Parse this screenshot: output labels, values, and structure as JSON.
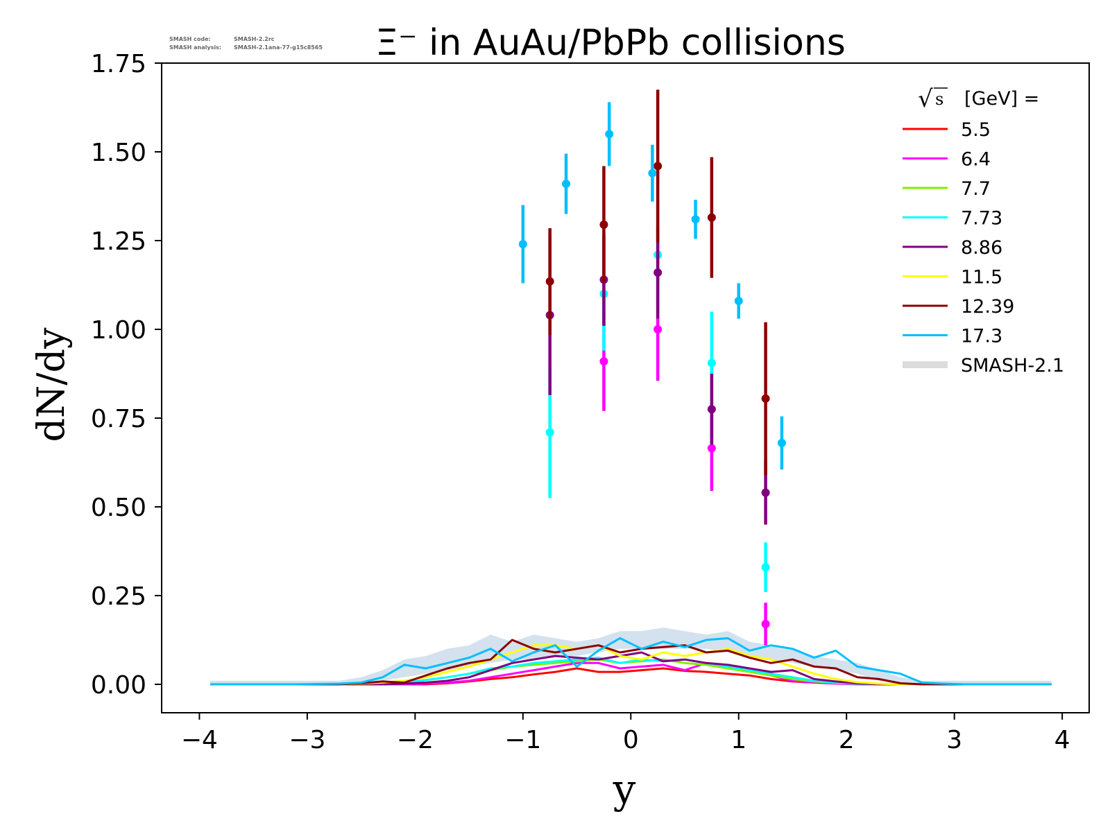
{
  "meta": {
    "code_label": "SMASH code:",
    "code_value": "SMASH-2.2rc",
    "analysis_label": "SMASH analysis:",
    "analysis_value": "SMASH-2.1ana-77-g15c8565"
  },
  "chart_data": {
    "type": "line",
    "title": "Ξ⁻ in AuAu/PbPb collisions",
    "xlabel": "y",
    "ylabel": "dN/dy",
    "xlim": [
      -4.35,
      4.25
    ],
    "ylim": [
      -0.08,
      1.75
    ],
    "xticks": [
      -4,
      -3,
      -2,
      -1,
      0,
      1,
      2,
      3,
      4
    ],
    "xtick_labels": [
      "−4",
      "−3",
      "−2",
      "−1",
      "0",
      "1",
      "2",
      "3",
      "4"
    ],
    "yticks": [
      0,
      0.25,
      0.5,
      0.75,
      1.0,
      1.25,
      1.5,
      1.75
    ],
    "ytick_labels": [
      "0.00",
      "0.25",
      "0.50",
      "0.75",
      "1.00",
      "1.25",
      "1.50",
      "1.75"
    ],
    "grid": false,
    "legend": {
      "position": "top-right",
      "title_sqrt": "√",
      "title_s": "s",
      "title_rest": "[GeV] ="
    },
    "band": {
      "name": "SMASH-2.1",
      "color": "#b0c8e0",
      "x": [
        -3.9,
        -3.5,
        -3.1,
        -2.7,
        -2.5,
        -2.3,
        -2.1,
        -1.9,
        -1.7,
        -1.5,
        -1.3,
        -1.1,
        -0.9,
        -0.7,
        -0.5,
        -0.3,
        -0.1,
        0.1,
        0.3,
        0.5,
        0.7,
        0.9,
        1.1,
        1.3,
        1.5,
        1.7,
        1.9,
        2.1,
        2.3,
        2.5,
        2.7,
        2.9,
        3.1,
        3.5,
        3.9
      ],
      "low": [
        0,
        0,
        0,
        0,
        0,
        0.01,
        0.02,
        0.03,
        0.04,
        0.05,
        0.06,
        0.07,
        0.07,
        0.08,
        0.08,
        0.09,
        0.1,
        0.1,
        0.1,
        0.1,
        0.1,
        0.09,
        0.08,
        0.07,
        0.06,
        0.05,
        0.04,
        0.03,
        0.01,
        0,
        0,
        0,
        0,
        0,
        0
      ],
      "high": [
        0.01,
        0.01,
        0.01,
        0.01,
        0.02,
        0.04,
        0.07,
        0.08,
        0.1,
        0.11,
        0.14,
        0.12,
        0.14,
        0.13,
        0.12,
        0.13,
        0.15,
        0.15,
        0.16,
        0.15,
        0.14,
        0.15,
        0.12,
        0.11,
        0.1,
        0.08,
        0.07,
        0.06,
        0.04,
        0.02,
        0.01,
        0.01,
        0.01,
        0.01,
        0.01
      ]
    },
    "x": [
      -3.9,
      -3.5,
      -3.1,
      -2.7,
      -2.5,
      -2.3,
      -2.1,
      -1.9,
      -1.7,
      -1.5,
      -1.3,
      -1.1,
      -0.9,
      -0.7,
      -0.5,
      -0.3,
      -0.1,
      0.1,
      0.3,
      0.5,
      0.7,
      0.9,
      1.1,
      1.3,
      1.5,
      1.7,
      1.9,
      2.1,
      2.3,
      2.5,
      2.7,
      2.9,
      3.1,
      3.5,
      3.9
    ],
    "series": [
      {
        "name": "5.5",
        "color": "#ff0000",
        "model": [
          0,
          0,
          0,
          0,
          0,
          0,
          0,
          0,
          0.003,
          0.008,
          0.015,
          0.02,
          0.028,
          0.035,
          0.045,
          0.035,
          0.035,
          0.04,
          0.045,
          0.038,
          0.035,
          0.03,
          0.025,
          0.015,
          0.008,
          0.005,
          0.003,
          0.001,
          0,
          0,
          0,
          0,
          0,
          0,
          0
        ],
        "points": []
      },
      {
        "name": "6.4",
        "color": "#ff00ff",
        "model": [
          0,
          0,
          0,
          0,
          0,
          0,
          0,
          0.002,
          0.005,
          0.01,
          0.02,
          0.03,
          0.04,
          0.05,
          0.06,
          0.06,
          0.045,
          0.05,
          0.055,
          0.04,
          0.06,
          0.05,
          0.04,
          0.025,
          0.01,
          0.005,
          0.002,
          0,
          0,
          0,
          0,
          0,
          0,
          0,
          0
        ],
        "points": [
          {
            "x": -0.25,
            "y": 0.91,
            "err": 0.14
          },
          {
            "x": 0.25,
            "y": 1.0,
            "err": 0.145
          },
          {
            "x": 0.75,
            "y": 0.665,
            "err": 0.12
          },
          {
            "x": 1.25,
            "y": 0.17,
            "err": 0.06
          }
        ]
      },
      {
        "name": "7.7",
        "color": "#7ff000",
        "model": [
          0,
          0,
          0,
          0,
          0,
          0.002,
          0.006,
          0.012,
          0.02,
          0.03,
          0.04,
          0.05,
          0.055,
          0.06,
          0.065,
          0.07,
          0.06,
          0.065,
          0.07,
          0.06,
          0.055,
          0.045,
          0.035,
          0.025,
          0.015,
          0.008,
          0.004,
          0.002,
          0,
          0,
          0,
          0,
          0,
          0,
          0
        ],
        "points": []
      },
      {
        "name": "7.73",
        "color": "#00ffff",
        "model": [
          0,
          0,
          0,
          0,
          0,
          0.002,
          0.006,
          0.012,
          0.02,
          0.03,
          0.045,
          0.05,
          0.06,
          0.065,
          0.07,
          0.075,
          0.06,
          0.07,
          0.065,
          0.07,
          0.06,
          0.05,
          0.04,
          0.03,
          0.02,
          0.01,
          0.005,
          0.002,
          0,
          0,
          0,
          0,
          0,
          0,
          0
        ],
        "points": [
          {
            "x": -0.75,
            "y": 0.71,
            "err": 0.185
          },
          {
            "x": -0.25,
            "y": 1.1,
            "err": 0.16
          },
          {
            "x": 0.25,
            "y": 1.21,
            "err": 0.14
          },
          {
            "x": 0.75,
            "y": 0.905,
            "err": 0.145
          },
          {
            "x": 1.25,
            "y": 0.33,
            "err": 0.07
          }
        ]
      },
      {
        "name": "8.86",
        "color": "#800080",
        "model": [
          0,
          0,
          0,
          0,
          0,
          0,
          0.002,
          0.005,
          0.01,
          0.02,
          0.04,
          0.06,
          0.07,
          0.08,
          0.075,
          0.07,
          0.08,
          0.09,
          0.065,
          0.07,
          0.06,
          0.055,
          0.045,
          0.035,
          0.04,
          0.015,
          0.008,
          0.003,
          0,
          0,
          0,
          0,
          0,
          0,
          0
        ],
        "points": [
          {
            "x": -0.75,
            "y": 1.04,
            "err": 0.225
          },
          {
            "x": -0.25,
            "y": 1.14,
            "err": 0.13
          },
          {
            "x": 0.25,
            "y": 1.16,
            "err": 0.13
          },
          {
            "x": 0.75,
            "y": 0.775,
            "err": 0.1
          },
          {
            "x": 1.25,
            "y": 0.54,
            "err": 0.09
          }
        ]
      },
      {
        "name": "11.5",
        "color": "#ffff00",
        "model": [
          0,
          0,
          0,
          0,
          0.002,
          0.005,
          0.01,
          0.02,
          0.035,
          0.05,
          0.07,
          0.09,
          0.11,
          0.11,
          0.1,
          0.11,
          0.08,
          0.07,
          0.09,
          0.08,
          0.09,
          0.1,
          0.08,
          0.07,
          0.05,
          0.03,
          0.015,
          0.006,
          0.002,
          0,
          0,
          0,
          0,
          0,
          0
        ],
        "points": []
      },
      {
        "name": "12.39",
        "color": "#8b0000",
        "model": [
          0,
          0,
          0,
          0,
          0.003,
          0.008,
          0.005,
          0.025,
          0.045,
          0.06,
          0.07,
          0.125,
          0.1,
          0.09,
          0.1,
          0.11,
          0.09,
          0.1,
          0.105,
          0.11,
          0.09,
          0.095,
          0.075,
          0.06,
          0.07,
          0.05,
          0.045,
          0.02,
          0.015,
          0.003,
          0,
          0,
          0,
          0,
          0
        ],
        "points": [
          {
            "x": -0.75,
            "y": 1.135,
            "err": 0.15
          },
          {
            "x": -0.25,
            "y": 1.295,
            "err": 0.165
          },
          {
            "x": 0.25,
            "y": 1.46,
            "err": 0.215
          },
          {
            "x": 0.75,
            "y": 1.315,
            "err": 0.17
          },
          {
            "x": 1.25,
            "y": 0.805,
            "err": 0.215
          }
        ]
      },
      {
        "name": "17.3",
        "color": "#00bfff",
        "model": [
          0,
          0,
          0,
          0.002,
          0.005,
          0.02,
          0.055,
          0.045,
          0.06,
          0.075,
          0.1,
          0.065,
          0.09,
          0.11,
          0.05,
          0.095,
          0.13,
          0.1,
          0.12,
          0.105,
          0.125,
          0.13,
          0.095,
          0.11,
          0.1,
          0.075,
          0.095,
          0.05,
          0.04,
          0.03,
          0.005,
          0.002,
          0,
          0,
          0
        ],
        "points": [
          {
            "x": -1.0,
            "y": 1.24,
            "err": 0.11
          },
          {
            "x": -0.6,
            "y": 1.41,
            "err": 0.085
          },
          {
            "x": -0.2,
            "y": 1.55,
            "err": 0.09
          },
          {
            "x": 0.2,
            "y": 1.44,
            "err": 0.08
          },
          {
            "x": 0.6,
            "y": 1.31,
            "err": 0.055
          },
          {
            "x": 1.0,
            "y": 1.08,
            "err": 0.05
          },
          {
            "x": 1.4,
            "y": 0.68,
            "err": 0.075
          }
        ]
      }
    ]
  }
}
